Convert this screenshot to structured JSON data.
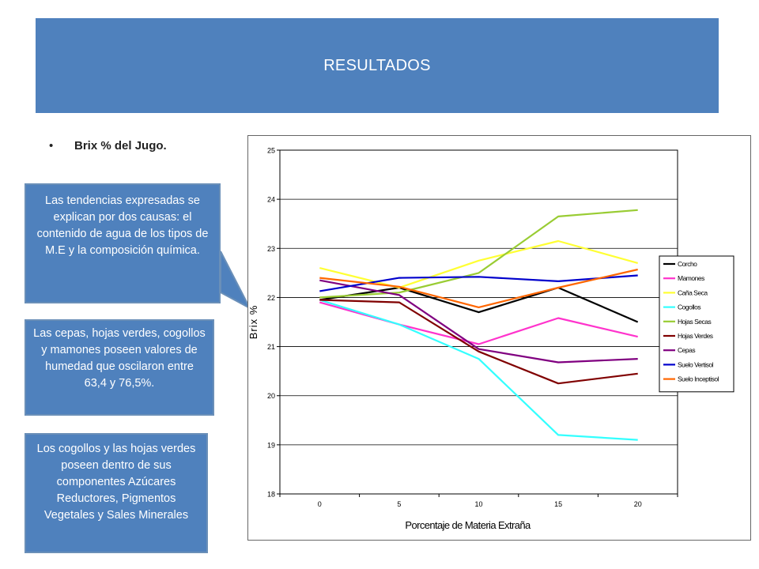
{
  "header": {
    "title": "RESULTADOS"
  },
  "bullet": {
    "text": "Brix % del Jugo."
  },
  "callouts": [
    {
      "text": "Las tendencias expresadas se explican por dos causas: el contenido de agua de los tipos de M.E y la composición química."
    },
    {
      "text": "Las cepas, hojas verdes, cogollos y mamones poseen valores de humedad que oscilaron entre 63,4 y 76,5%."
    },
    {
      "text": "Los cogollos y las hojas verdes poseen dentro de sus componentes Azúcares Reductores, Pigmentos Vegetales y Sales Minerales"
    }
  ],
  "chart_data": {
    "type": "line",
    "title": "",
    "xlabel": "Porcentaje de Materia Extraña",
    "ylabel": "Brix %",
    "x": [
      0,
      5,
      10,
      15,
      20
    ],
    "ylim": [
      18,
      25
    ],
    "yticks": [
      18,
      19,
      20,
      21,
      22,
      23,
      24,
      25
    ],
    "grid": "horizontal",
    "legend": "right",
    "series": [
      {
        "name": "Corcho",
        "color": "#000000",
        "values": [
          21.95,
          22.2,
          21.7,
          22.2,
          21.5
        ]
      },
      {
        "name": "Mamones",
        "color": "#ff33cc",
        "values": [
          21.9,
          21.45,
          21.05,
          21.58,
          21.2
        ]
      },
      {
        "name": "Caña Seca",
        "color": "#ffff33",
        "values": [
          22.6,
          22.2,
          22.75,
          23.15,
          22.7
        ]
      },
      {
        "name": "Cogollos",
        "color": "#33ffff",
        "values": [
          21.95,
          21.45,
          20.75,
          19.2,
          19.1
        ]
      },
      {
        "name": "Hojas Secas",
        "color": "#99cc33",
        "values": [
          22.0,
          22.1,
          22.5,
          23.65,
          23.78
        ]
      },
      {
        "name": "Hojas Verdes",
        "color": "#800000",
        "values": [
          21.95,
          21.9,
          20.9,
          20.25,
          20.45
        ]
      },
      {
        "name": "Cepas",
        "color": "#800080",
        "values": [
          22.35,
          22.05,
          20.95,
          20.68,
          20.75
        ]
      },
      {
        "name": "Suelo Vertisol",
        "color": "#0000cc",
        "values": [
          22.13,
          22.4,
          22.42,
          22.33,
          22.45
        ]
      },
      {
        "name": "Suelo Inceptisol",
        "color": "#ff6600",
        "values": [
          22.4,
          22.22,
          21.8,
          22.2,
          22.57
        ]
      }
    ]
  }
}
